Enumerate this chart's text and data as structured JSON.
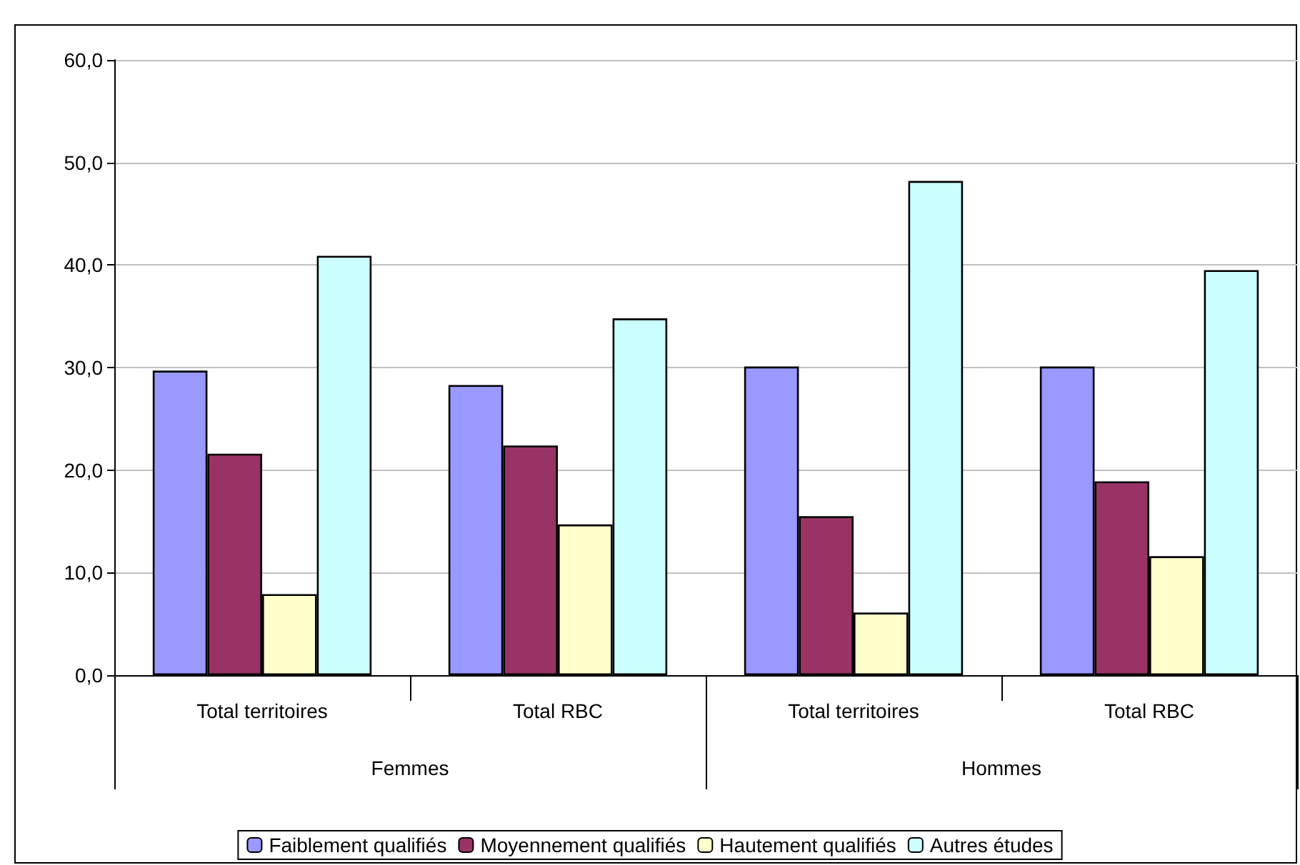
{
  "chart_data": {
    "type": "bar",
    "categories": [
      "Total territoires",
      "Total RBC",
      "Total territoires",
      "Total RBC"
    ],
    "series": [
      {
        "name": "Faiblement qualifiés",
        "color": "#9999ff",
        "values": [
          29.7,
          28.3,
          30.1,
          30.1
        ]
      },
      {
        "name": "Moyennement qualifiés",
        "color": "#993366",
        "values": [
          21.6,
          22.4,
          15.5,
          18.9
        ]
      },
      {
        "name": "Hautement qualifiés",
        "color": "#ffffcc",
        "values": [
          7.9,
          14.7,
          6.1,
          11.6
        ]
      },
      {
        "name": "Autres études",
        "color": "#ccffff",
        "values": [
          40.9,
          34.8,
          48.2,
          39.5
        ]
      }
    ],
    "annotations": [
      "Femmes",
      "Hommes"
    ],
    "ylim": [
      0,
      60
    ],
    "yticks": [
      {
        "value": 0,
        "label": "0,0"
      },
      {
        "value": 10,
        "label": "10,0"
      },
      {
        "value": 20,
        "label": "20,0"
      },
      {
        "value": 30,
        "label": "30,0"
      },
      {
        "value": 40,
        "label": "40,0"
      },
      {
        "value": 50,
        "label": "50,0"
      },
      {
        "value": 60,
        "label": "60,0"
      }
    ],
    "grid": "y",
    "legend": "bottom"
  }
}
